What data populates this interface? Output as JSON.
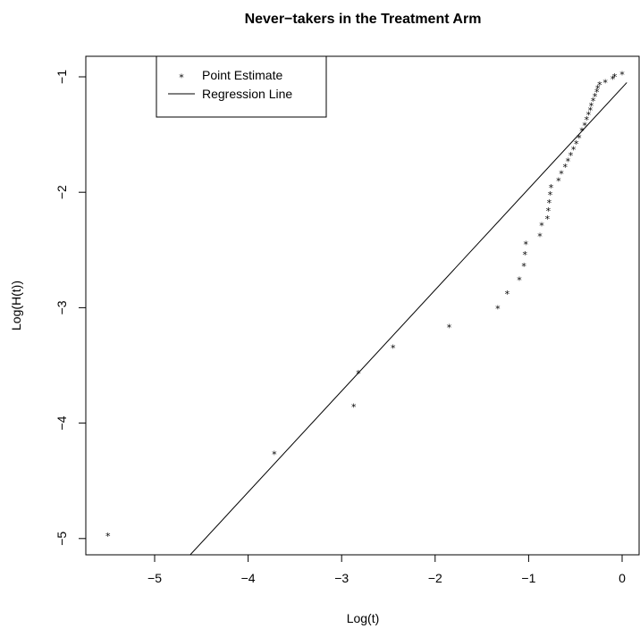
{
  "chart_data": {
    "type": "scatter",
    "title": "Never−takers in the Treatment Arm",
    "xlabel": "Log(t)",
    "ylabel": "Log(H(t))",
    "xlim": [
      -5.7,
      0.05
    ],
    "ylim": [
      -5.15,
      -0.8
    ],
    "xticks": [
      -5,
      -4,
      -3,
      -2,
      -1,
      0
    ],
    "xtick_labels": [
      "−5",
      "−4",
      "−3",
      "−2",
      "−1",
      "0"
    ],
    "yticks": [
      -5,
      -4,
      -3,
      -2,
      -1
    ],
    "ytick_labels": [
      "−5",
      "−4",
      "−3",
      "−2",
      "−1"
    ],
    "legend": {
      "position": "top-left",
      "entries": [
        {
          "label": "Point Estimate",
          "symbol": "*"
        },
        {
          "label": "Regression Line",
          "symbol": "line"
        }
      ]
    },
    "series": [
      {
        "name": "Point Estimate",
        "marker": "*",
        "points": [
          [
            -5.5,
            -4.98
          ],
          [
            -3.72,
            -4.27
          ],
          [
            -2.87,
            -3.86
          ],
          [
            -2.82,
            -3.57
          ],
          [
            -2.45,
            -3.35
          ],
          [
            -1.85,
            -3.17
          ],
          [
            -1.33,
            -3.01
          ],
          [
            -1.23,
            -2.88
          ],
          [
            -1.1,
            -2.76
          ],
          [
            -1.05,
            -2.64
          ],
          [
            -1.04,
            -2.54
          ],
          [
            -1.03,
            -2.45
          ],
          [
            -0.88,
            -2.38
          ],
          [
            -0.86,
            -2.29
          ],
          [
            -0.8,
            -2.23
          ],
          [
            -0.79,
            -2.16
          ],
          [
            -0.78,
            -2.09
          ],
          [
            -0.77,
            -2.02
          ],
          [
            -0.76,
            -1.96
          ],
          [
            -0.68,
            -1.9
          ],
          [
            -0.65,
            -1.84
          ],
          [
            -0.61,
            -1.78
          ],
          [
            -0.58,
            -1.73
          ],
          [
            -0.55,
            -1.68
          ],
          [
            -0.52,
            -1.63
          ],
          [
            -0.49,
            -1.58
          ],
          [
            -0.46,
            -1.53
          ],
          [
            -0.43,
            -1.47
          ],
          [
            -0.4,
            -1.42
          ],
          [
            -0.38,
            -1.37
          ],
          [
            -0.36,
            -1.33
          ],
          [
            -0.34,
            -1.29
          ],
          [
            -0.33,
            -1.25
          ],
          [
            -0.31,
            -1.21
          ],
          [
            -0.29,
            -1.17
          ],
          [
            -0.27,
            -1.13
          ],
          [
            -0.26,
            -1.1
          ],
          [
            -0.24,
            -1.07
          ],
          [
            -0.18,
            -1.05
          ],
          [
            -0.1,
            -1.02
          ],
          [
            -0.08,
            -1.0
          ],
          [
            0.0,
            -0.98
          ]
        ]
      },
      {
        "name": "Regression Line",
        "type": "line",
        "x": [
          -4.63,
          0.05
        ],
        "y": [
          -5.15,
          -1.05
        ]
      }
    ]
  }
}
